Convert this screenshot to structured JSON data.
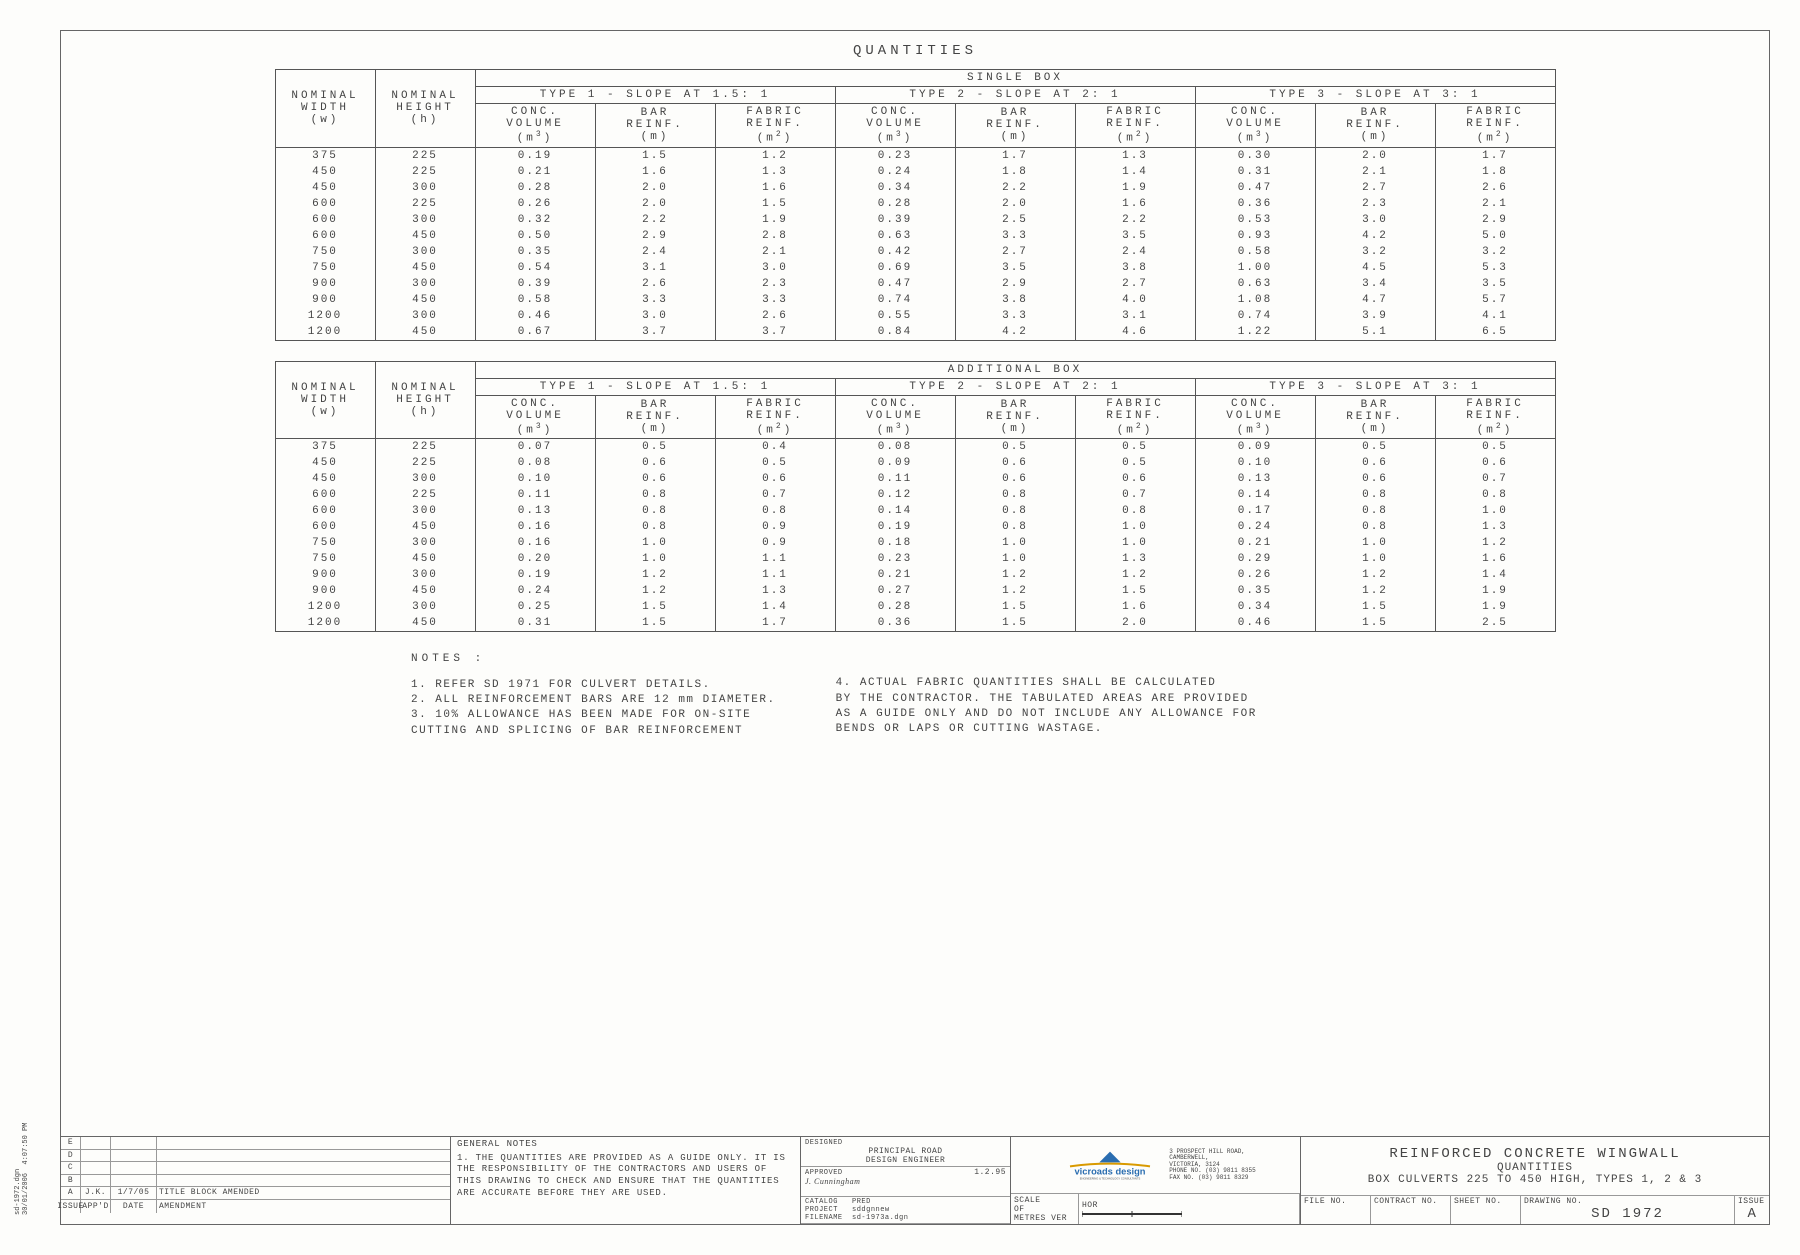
{
  "page_title": "QUANTITIES",
  "table1": {
    "box_header": "SINGLE BOX",
    "nom_w": "NOMINAL\nWIDTH\n(w)",
    "nom_h": "NOMINAL\nHEIGHT\n(h)",
    "types": [
      "TYPE 1 - SLOPE AT 1.5: 1",
      "TYPE 2 - SLOPE AT 2: 1",
      "TYPE 3 - SLOPE AT 3: 1"
    ],
    "subheads": [
      "CONC.\nVOLUME\n(m³)",
      "BAR\nREINF.\n(m)",
      "FABRIC\nREINF.\n(m²)"
    ],
    "rows": [
      [
        "375",
        "225",
        "0.19",
        "1.5",
        "1.2",
        "0.23",
        "1.7",
        "1.3",
        "0.30",
        "2.0",
        "1.7"
      ],
      [
        "450",
        "225",
        "0.21",
        "1.6",
        "1.3",
        "0.24",
        "1.8",
        "1.4",
        "0.31",
        "2.1",
        "1.8"
      ],
      [
        "450",
        "300",
        "0.28",
        "2.0",
        "1.6",
        "0.34",
        "2.2",
        "1.9",
        "0.47",
        "2.7",
        "2.6"
      ],
      [
        "600",
        "225",
        "0.26",
        "2.0",
        "1.5",
        "0.28",
        "2.0",
        "1.6",
        "0.36",
        "2.3",
        "2.1"
      ],
      [
        "600",
        "300",
        "0.32",
        "2.2",
        "1.9",
        "0.39",
        "2.5",
        "2.2",
        "0.53",
        "3.0",
        "2.9"
      ],
      [
        "600",
        "450",
        "0.50",
        "2.9",
        "2.8",
        "0.63",
        "3.3",
        "3.5",
        "0.93",
        "4.2",
        "5.0"
      ],
      [
        "750",
        "300",
        "0.35",
        "2.4",
        "2.1",
        "0.42",
        "2.7",
        "2.4",
        "0.58",
        "3.2",
        "3.2"
      ],
      [
        "750",
        "450",
        "0.54",
        "3.1",
        "3.0",
        "0.69",
        "3.5",
        "3.8",
        "1.00",
        "4.5",
        "5.3"
      ],
      [
        "900",
        "300",
        "0.39",
        "2.6",
        "2.3",
        "0.47",
        "2.9",
        "2.7",
        "0.63",
        "3.4",
        "3.5"
      ],
      [
        "900",
        "450",
        "0.58",
        "3.3",
        "3.3",
        "0.74",
        "3.8",
        "4.0",
        "1.08",
        "4.7",
        "5.7"
      ],
      [
        "1200",
        "300",
        "0.46",
        "3.0",
        "2.6",
        "0.55",
        "3.3",
        "3.1",
        "0.74",
        "3.9",
        "4.1"
      ],
      [
        "1200",
        "450",
        "0.67",
        "3.7",
        "3.7",
        "0.84",
        "4.2",
        "4.6",
        "1.22",
        "5.1",
        "6.5"
      ]
    ]
  },
  "table2": {
    "box_header": "ADDITIONAL BOX",
    "rows": [
      [
        "375",
        "225",
        "0.07",
        "0.5",
        "0.4",
        "0.08",
        "0.5",
        "0.5",
        "0.09",
        "0.5",
        "0.5"
      ],
      [
        "450",
        "225",
        "0.08",
        "0.6",
        "0.5",
        "0.09",
        "0.6",
        "0.5",
        "0.10",
        "0.6",
        "0.6"
      ],
      [
        "450",
        "300",
        "0.10",
        "0.6",
        "0.6",
        "0.11",
        "0.6",
        "0.6",
        "0.13",
        "0.6",
        "0.7"
      ],
      [
        "600",
        "225",
        "0.11",
        "0.8",
        "0.7",
        "0.12",
        "0.8",
        "0.7",
        "0.14",
        "0.8",
        "0.8"
      ],
      [
        "600",
        "300",
        "0.13",
        "0.8",
        "0.8",
        "0.14",
        "0.8",
        "0.8",
        "0.17",
        "0.8",
        "1.0"
      ],
      [
        "600",
        "450",
        "0.16",
        "0.8",
        "0.9",
        "0.19",
        "0.8",
        "1.0",
        "0.24",
        "0.8",
        "1.3"
      ],
      [
        "750",
        "300",
        "0.16",
        "1.0",
        "0.9",
        "0.18",
        "1.0",
        "1.0",
        "0.21",
        "1.0",
        "1.2"
      ],
      [
        "750",
        "450",
        "0.20",
        "1.0",
        "1.1",
        "0.23",
        "1.0",
        "1.3",
        "0.29",
        "1.0",
        "1.6"
      ],
      [
        "900",
        "300",
        "0.19",
        "1.2",
        "1.1",
        "0.21",
        "1.2",
        "1.2",
        "0.26",
        "1.2",
        "1.4"
      ],
      [
        "900",
        "450",
        "0.24",
        "1.2",
        "1.3",
        "0.27",
        "1.2",
        "1.5",
        "0.35",
        "1.2",
        "1.9"
      ],
      [
        "1200",
        "300",
        "0.25",
        "1.5",
        "1.4",
        "0.28",
        "1.5",
        "1.6",
        "0.34",
        "1.5",
        "1.9"
      ],
      [
        "1200",
        "450",
        "0.31",
        "1.5",
        "1.7",
        "0.36",
        "1.5",
        "2.0",
        "0.46",
        "1.5",
        "2.5"
      ]
    ]
  },
  "notes_title": "NOTES :",
  "notes_left": [
    "1. REFER SD 1971 FOR CULVERT DETAILS.",
    "2. ALL REINFORCEMENT BARS ARE 12 mm DIAMETER.",
    "3. 10% ALLOWANCE HAS BEEN MADE FOR ON-SITE",
    "   CUTTING AND SPLICING OF BAR REINFORCEMENT"
  ],
  "notes_right": [
    "4. ACTUAL FABRIC QUANTITIES SHALL BE CALCULATED",
    "   BY THE CONTRACTOR. THE TABULATED AREAS ARE PROVIDED",
    "   AS A GUIDE ONLY AND DO NOT INCLUDE ANY ALLOWANCE FOR",
    "   BENDS OR LAPS OR CUTTING WASTAGE."
  ],
  "rev_rows": [
    {
      "c1": "E",
      "c2": "",
      "c3": "",
      "c4": ""
    },
    {
      "c1": "D",
      "c2": "",
      "c3": "",
      "c4": ""
    },
    {
      "c1": "C",
      "c2": "",
      "c3": "",
      "c4": ""
    },
    {
      "c1": "B",
      "c2": "",
      "c3": "",
      "c4": ""
    },
    {
      "c1": "A",
      "c2": "J.K.",
      "c3": "1/7/05",
      "c4": "TITLE BLOCK AMENDED"
    }
  ],
  "rev_header": {
    "c1": "ISSUE",
    "c2": "APP'D",
    "c3": "DATE",
    "c4": "AMENDMENT"
  },
  "gen_notes_title": "GENERAL NOTES",
  "gen_notes": "1. THE QUANTITIES ARE PROVIDED AS A GUIDE ONLY. IT IS THE RESPONSIBILITY OF THE CONTRACTORS AND USERS OF THIS DRAWING TO CHECK AND ENSURE THAT THE QUANTITIES ARE ACCURATE BEFORE THEY ARE USED.",
  "sign": {
    "designed": "DESIGNED",
    "designed_val": "PRINCIPAL ROAD\nDESIGN ENGINEER",
    "approved": "APPROVED",
    "approved_date": "1.2.95",
    "catalog": "CATALOG",
    "catalog_val": "PRED",
    "project": "PROJECT",
    "project_val": "sddgnnew",
    "filename": "FILENAME",
    "filename_val": "sd-1973a.dgn"
  },
  "logo_text": "vicroads design",
  "logo_sub": "ENGINEERING & TECHNOLOGY CONSULTANTS",
  "logo_addr": "3 PROSPECT HILL ROAD,\nCAMBERWELL,\nVICTORIA, 3124\nPHONE NO. (03) 9811 8355\nFAX NO. (03) 9811 8329",
  "scale": "SCALE",
  "scale_val": "HOR",
  "of": "OF",
  "metres": "METRES VER",
  "drawing_title1": "REINFORCED CONCRETE WINGWALL",
  "drawing_title2": "QUANTITIES",
  "drawing_title3": "BOX CULVERTS 225 TO 450 HIGH, TYPES 1, 2 & 3",
  "file_no": "FILE NO.",
  "contract_no": "CONTRACT NO.",
  "sheet_no": "SHEET NO.",
  "drawing_no": "DRAWING NO.",
  "drawing_no_val": "SD 1972",
  "issue": "ISSUE",
  "issue_val": "A",
  "side_text": "sd-1972.dgn\n30/01/2006  4:07:50 PM",
  "col_widths": {
    "nom": 100,
    "data": 120
  }
}
